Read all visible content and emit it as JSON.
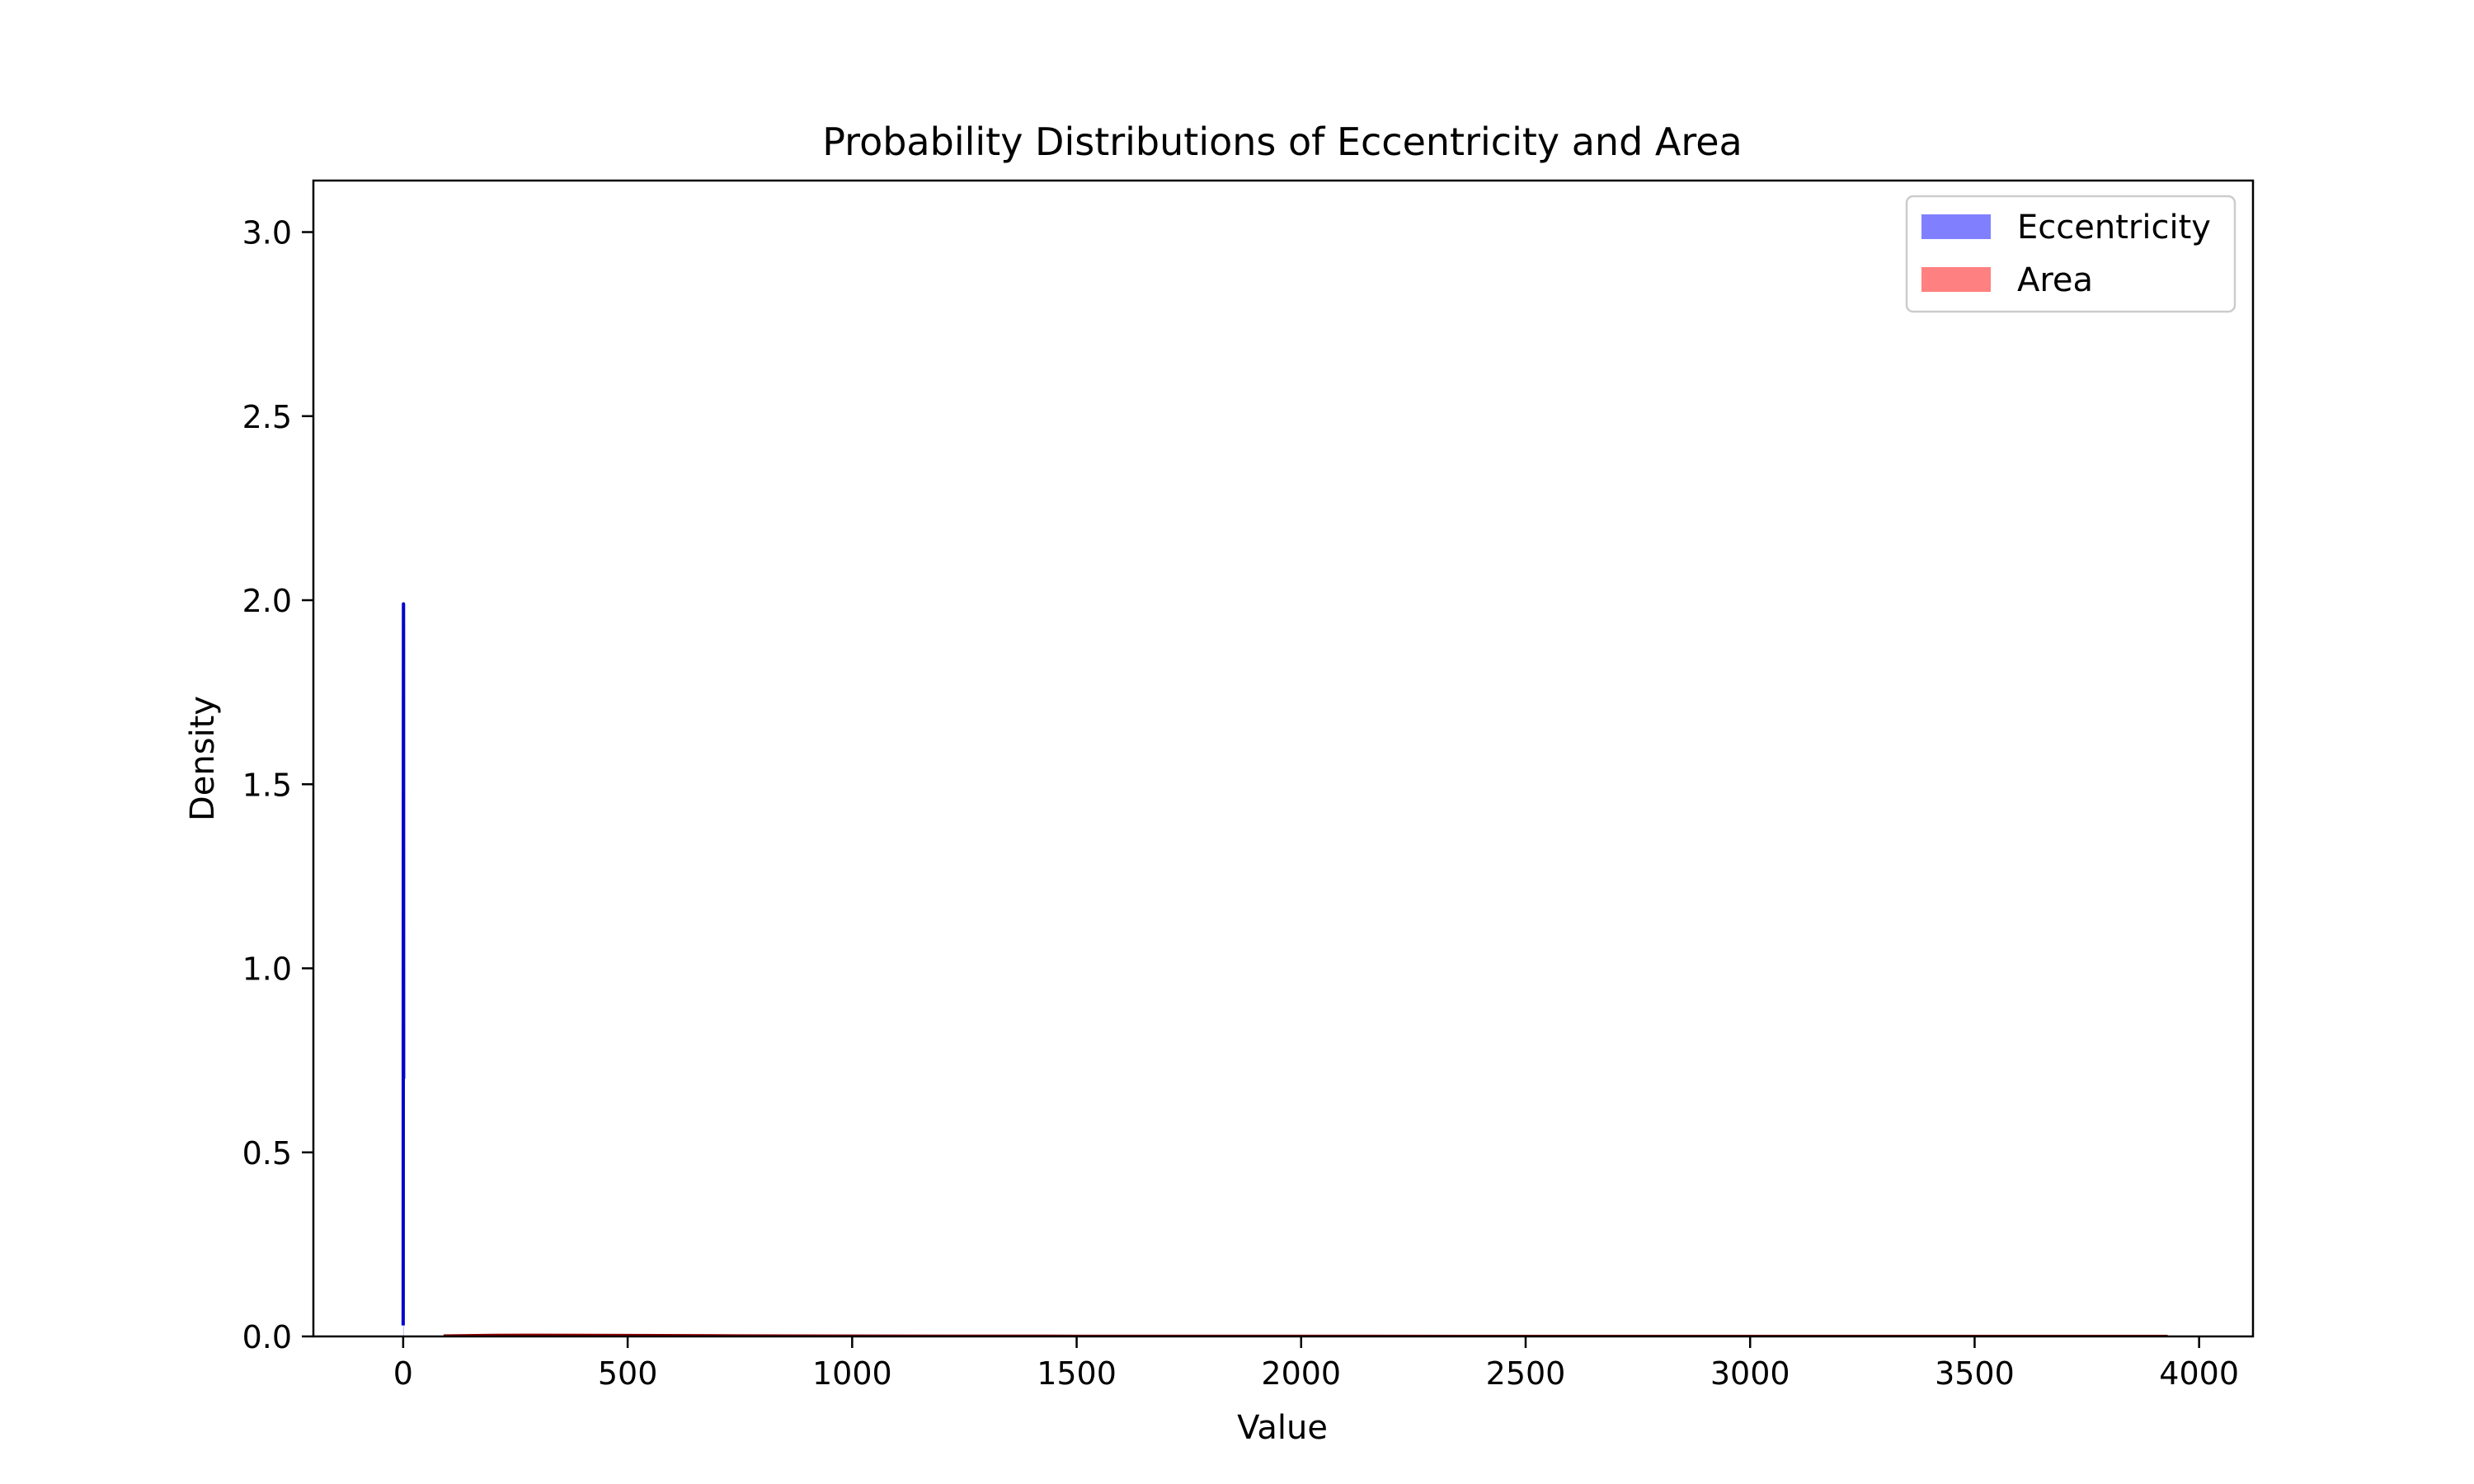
{
  "chart_data": {
    "type": "area",
    "title": "Probability Distributions of Eccentricity and Area",
    "xlabel": "Value",
    "ylabel": "Density",
    "xlim": [
      -200,
      4120
    ],
    "ylim": [
      0,
      3.14
    ],
    "x_ticks": [
      0,
      500,
      1000,
      1500,
      2000,
      2500,
      3000,
      3500,
      4000
    ],
    "x_tick_labels": [
      "0",
      "500",
      "1000",
      "1500",
      "2000",
      "2500",
      "3000",
      "3500",
      "4000"
    ],
    "y_ticks": [
      0.0,
      0.5,
      1.0,
      1.5,
      2.0,
      2.5,
      3.0
    ],
    "y_tick_labels": [
      "0.0",
      "0.5",
      "1.0",
      "1.5",
      "2.0",
      "2.5",
      "3.0"
    ],
    "grid": false,
    "legend_position": "top-right",
    "series": [
      {
        "name": "Eccentricity",
        "fill_color": "#8080ff",
        "line_color": "#0000cc",
        "x": [
          0.0,
          0.05,
          0.1,
          0.2,
          0.3,
          0.4,
          0.5,
          0.6,
          0.7,
          0.8,
          0.9,
          0.95,
          1.0
        ],
        "y": [
          0.03,
          0.1,
          0.3,
          0.7,
          1.0,
          1.3,
          1.6,
          1.85,
          1.99,
          1.9,
          1.5,
          1.0,
          0.7
        ]
      },
      {
        "name": "Area",
        "fill_color": "#ff8080",
        "line_color": "#8b0000",
        "x": [
          90,
          200,
          300,
          400,
          500,
          700,
          1000,
          1500,
          2000,
          2500,
          3000,
          3500,
          3930
        ],
        "y": [
          0.0011,
          0.0028,
          0.0032,
          0.0029,
          0.0024,
          0.0016,
          0.0009,
          0.0004,
          0.0002,
          0.0001,
          5e-05,
          3e-05,
          2e-05
        ]
      }
    ]
  }
}
